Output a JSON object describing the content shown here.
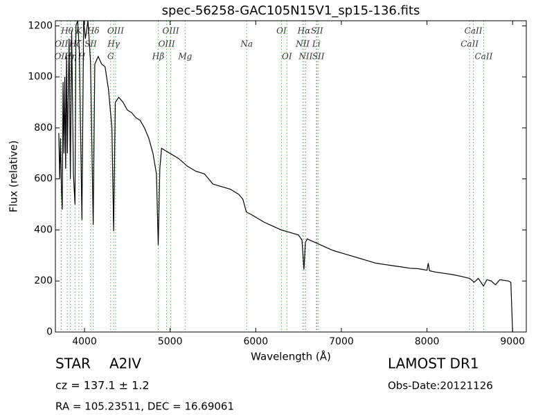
{
  "chart_data": {
    "type": "line",
    "title": "spec-56258-GAC105N15V1_sp15-136.fits",
    "x_label": "Wavelength (Å)",
    "y_label": "Flux (relative)",
    "xlim": [
      3660,
      9160
    ],
    "ylim": [
      0,
      1220
    ],
    "xticks": [
      4000,
      5000,
      6000,
      7000,
      8000,
      9000
    ],
    "yticks": [
      0,
      200,
      400,
      600,
      800,
      1000,
      1200
    ],
    "color": "#000000",
    "line_color": "#55aa55",
    "x": [
      3700,
      3710,
      3720,
      3730,
      3740,
      3750,
      3760,
      3770,
      3780,
      3790,
      3800,
      3820,
      3835,
      3850,
      3870,
      3889,
      3900,
      3920,
      3940,
      3970,
      3990,
      4010,
      4040,
      4070,
      4102,
      4120,
      4160,
      4200,
      4240,
      4280,
      4320,
      4340,
      4360,
      4400,
      4450,
      4500,
      4550,
      4600,
      4650,
      4700,
      4750,
      4800,
      4840,
      4861,
      4880,
      4900,
      4950,
      5000,
      5100,
      5200,
      5300,
      5400,
      5500,
      5600,
      5700,
      5800,
      5850,
      5890,
      5950,
      6000,
      6100,
      6200,
      6300,
      6400,
      6500,
      6540,
      6563,
      6580,
      6600,
      6700,
      6800,
      6900,
      7000,
      7100,
      7200,
      7300,
      7400,
      7500,
      7600,
      7700,
      7800,
      7900,
      8000,
      8015,
      8030,
      8100,
      8200,
      8300,
      8400,
      8500,
      8550,
      8600,
      8660,
      8700,
      8750,
      8800,
      8850,
      8950,
      8980,
      9000
    ],
    "values": [
      780,
      600,
      760,
      560,
      480,
      980,
      700,
      1000,
      640,
      1080,
      700,
      1150,
      600,
      1180,
      620,
      500,
      1200,
      1220,
      1100,
      440,
      1220,
      1150,
      1220,
      1060,
      420,
      1050,
      1080,
      1050,
      1040,
      950,
      800,
      395,
      900,
      920,
      900,
      870,
      860,
      840,
      830,
      800,
      760,
      700,
      620,
      340,
      640,
      720,
      710,
      700,
      680,
      650,
      630,
      620,
      580,
      570,
      560,
      540,
      520,
      470,
      460,
      450,
      430,
      415,
      400,
      390,
      380,
      360,
      245,
      350,
      365,
      350,
      335,
      320,
      310,
      300,
      290,
      280,
      270,
      265,
      260,
      255,
      250,
      248,
      242,
      270,
      240,
      235,
      230,
      225,
      218,
      210,
      195,
      210,
      180,
      205,
      200,
      185,
      205,
      200,
      195,
      0
    ],
    "lines": [
      {
        "label": "OII",
        "wavelength": 3726
      },
      {
        "label": "OII",
        "wavelength": 3729
      },
      {
        "label": "Hθ",
        "wavelength": 3798
      },
      {
        "label": "Hη",
        "wavelength": 3835
      },
      {
        "label": "Hζ",
        "wavelength": 3889
      },
      {
        "label": "K",
        "wavelength": 3934
      },
      {
        "label": "H",
        "wavelength": 3968
      },
      {
        "label": "SII",
        "wavelength": 4072
      },
      {
        "label": "Hδ",
        "wavelength": 4102
      },
      {
        "label": "G",
        "wavelength": 4305
      },
      {
        "label": "Hγ",
        "wavelength": 4340
      },
      {
        "label": "OIII",
        "wavelength": 4363
      },
      {
        "label": "Hβ",
        "wavelength": 4861
      },
      {
        "label": "OIII",
        "wavelength": 4959
      },
      {
        "label": "OIII",
        "wavelength": 5007
      },
      {
        "label": "Mg",
        "wavelength": 5175
      },
      {
        "label": "Na",
        "wavelength": 5894
      },
      {
        "label": "OI",
        "wavelength": 6300
      },
      {
        "label": "OI",
        "wavelength": 6364
      },
      {
        "label": "NII",
        "wavelength": 6548
      },
      {
        "label": "Hα",
        "wavelength": 6563
      },
      {
        "label": "NII",
        "wavelength": 6583
      },
      {
        "label": "Li",
        "wavelength": 6708
      },
      {
        "label": "SII",
        "wavelength": 6716
      },
      {
        "label": "SII",
        "wavelength": 6731
      },
      {
        "label": "CaII",
        "wavelength": 8498
      },
      {
        "label": "CaII",
        "wavelength": 8542
      },
      {
        "label": "CaII",
        "wavelength": 8662
      }
    ],
    "annotations": {
      "object_class": "STAR",
      "subclass": "A2IV",
      "redshift": "cz = 137.1 ± 1.2",
      "coordinates": "RA = 105.23511, DEC = 16.69061",
      "survey": "LAMOST DR1",
      "obs_date": "Obs-Date:20121126"
    }
  }
}
